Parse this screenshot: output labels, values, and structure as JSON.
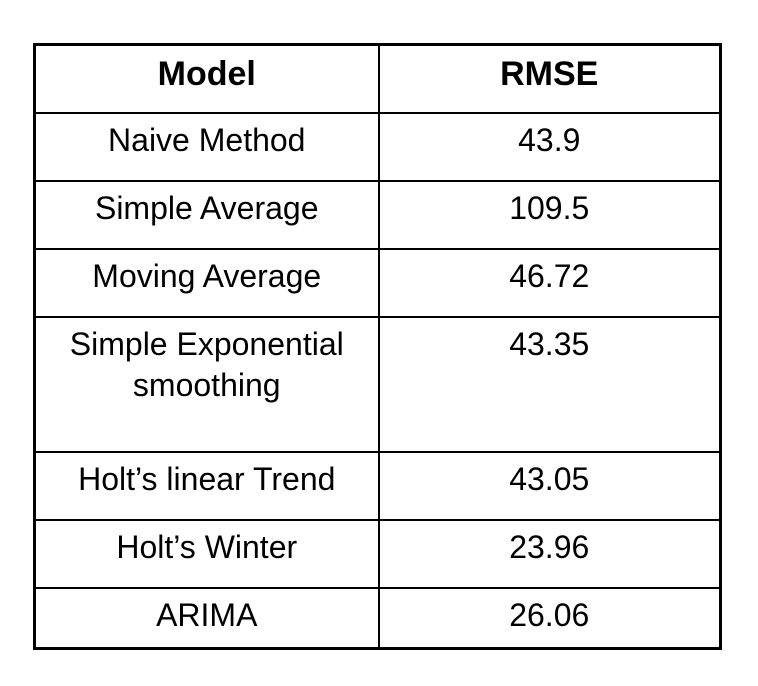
{
  "chart_data": {
    "type": "table",
    "title": "",
    "columns": [
      {
        "label": "Model"
      },
      {
        "label": "RMSE"
      }
    ],
    "rows": [
      {
        "model": "Naive Method",
        "rmse": "43.9"
      },
      {
        "model": "Simple Average",
        "rmse": "109.5"
      },
      {
        "model": "Moving Average",
        "rmse": "46.72"
      },
      {
        "model": "Simple Exponential smoothing",
        "rmse": "43.35"
      },
      {
        "model": "Holt’s linear Trend",
        "rmse": "43.05"
      },
      {
        "model": "Holt’s Winter",
        "rmse": "23.96"
      },
      {
        "model": "ARIMA",
        "rmse": "26.06"
      }
    ],
    "layout": {
      "legend": "none",
      "grid": "full-borders",
      "header_style": "bold",
      "text_align": "center"
    },
    "colors": {
      "border": "#000000",
      "text": "#000000",
      "background": "#ffffff"
    }
  }
}
